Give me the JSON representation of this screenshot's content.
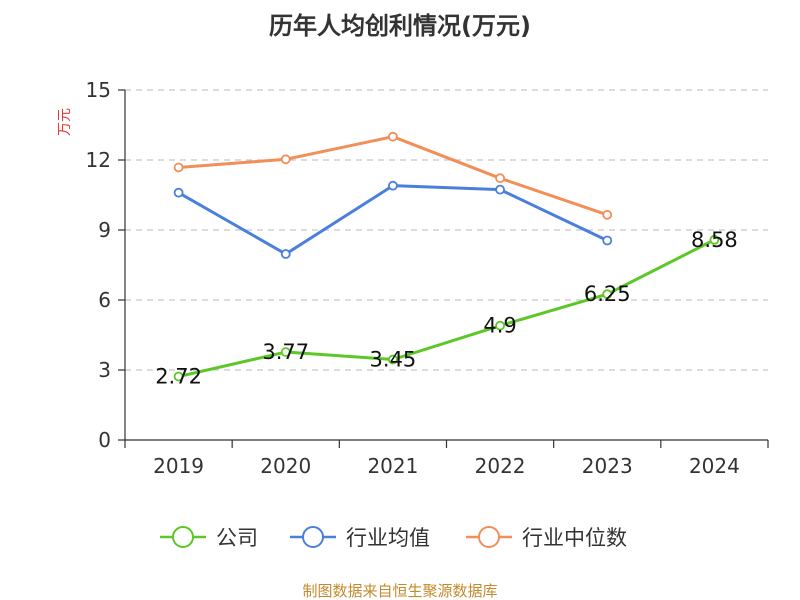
{
  "chart_data": {
    "type": "line",
    "title": "历年人均创利情况(万元)",
    "ylabel": "万元",
    "xlabel": "",
    "categories": [
      "2019",
      "2020",
      "2021",
      "2022",
      "2023",
      "2024"
    ],
    "y_ticks": [
      0,
      3,
      6,
      9,
      12,
      15
    ],
    "y_tick_labels": [
      "0",
      "3",
      "6",
      "9",
      "12",
      "15"
    ],
    "ylim": [
      0,
      15
    ],
    "grid": "horizontal dashed",
    "legend_position": "bottom",
    "series": [
      {
        "name": "公司",
        "color": "#5cc726",
        "values": [
          2.72,
          3.77,
          3.45,
          4.9,
          6.25,
          8.58
        ],
        "data_labels": [
          "2.72",
          "3.77",
          "3.45",
          "4.9",
          "6.25",
          "8.58"
        ]
      },
      {
        "name": "行业均值",
        "color": "#4b7fdc",
        "values": [
          10.6,
          7.97,
          10.9,
          10.73,
          8.55,
          null
        ]
      },
      {
        "name": "行业中位数",
        "color": "#f28e58",
        "values": [
          11.68,
          12.03,
          13.0,
          11.22,
          9.65,
          null
        ]
      }
    ]
  },
  "footer": {
    "text": "制图数据来自恒生聚源数据库",
    "color": "#c48a2c"
  },
  "ylabel_color": "#e03b3b"
}
